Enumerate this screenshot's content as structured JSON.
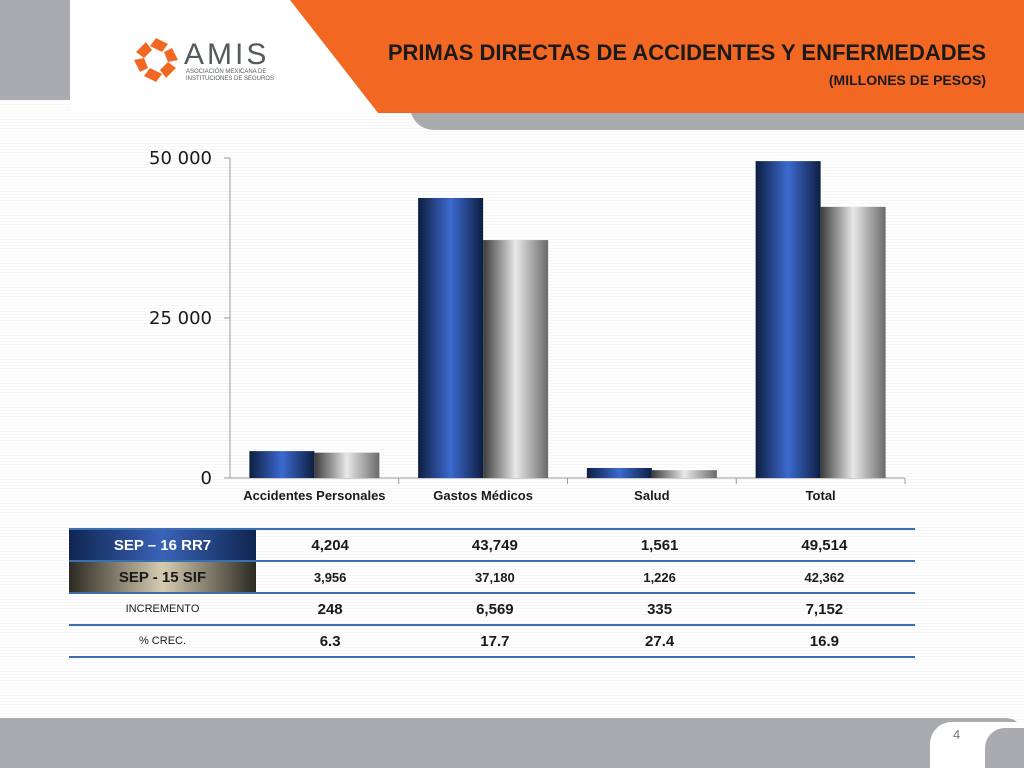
{
  "header": {
    "logo_word": "AMIS",
    "logo_sub": "ASOCIACIÓN MEXICANA DE INSTITUCIONES DE SEGUROS",
    "title": "PRIMAS DIRECTAS DE ACCIDENTES Y ENFERMEDADES",
    "subtitle": "(MILLONES DE PESOS)",
    "accent_color": "#f26722"
  },
  "chart_data": {
    "type": "bar",
    "categories": [
      "Accidentes Personales",
      "Gastos Médicos",
      "Salud",
      "Total"
    ],
    "series": [
      {
        "values": [
          4204,
          43749,
          1561,
          49514
        ],
        "color": "#3a63b8"
      },
      {
        "values": [
          3956,
          37180,
          1226,
          42362
        ],
        "color": "#8c8c8c"
      }
    ],
    "ylim": [
      0,
      50000
    ],
    "yticks": [
      0,
      25000,
      50000
    ],
    "ytick_labels": [
      "0",
      "25 000",
      "50 000"
    ],
    "grid": false,
    "legend": "none"
  },
  "table": {
    "rows": [
      {
        "label": "SEP – 16 RR7",
        "values": [
          "4,204",
          "43,749",
          "1,561",
          "49,514"
        ]
      },
      {
        "label": "SEP -  15 SIF",
        "values": [
          "3,956",
          "37,180",
          "1,226",
          "42,362"
        ]
      },
      {
        "label": "INCREMENTO",
        "values": [
          "248",
          "6,569",
          "335",
          "7,152"
        ]
      },
      {
        "label": "% CREC.",
        "values": [
          "6.3",
          "17.7",
          "27.4",
          "16.9"
        ]
      }
    ]
  },
  "footer": {
    "page_number": "4"
  }
}
